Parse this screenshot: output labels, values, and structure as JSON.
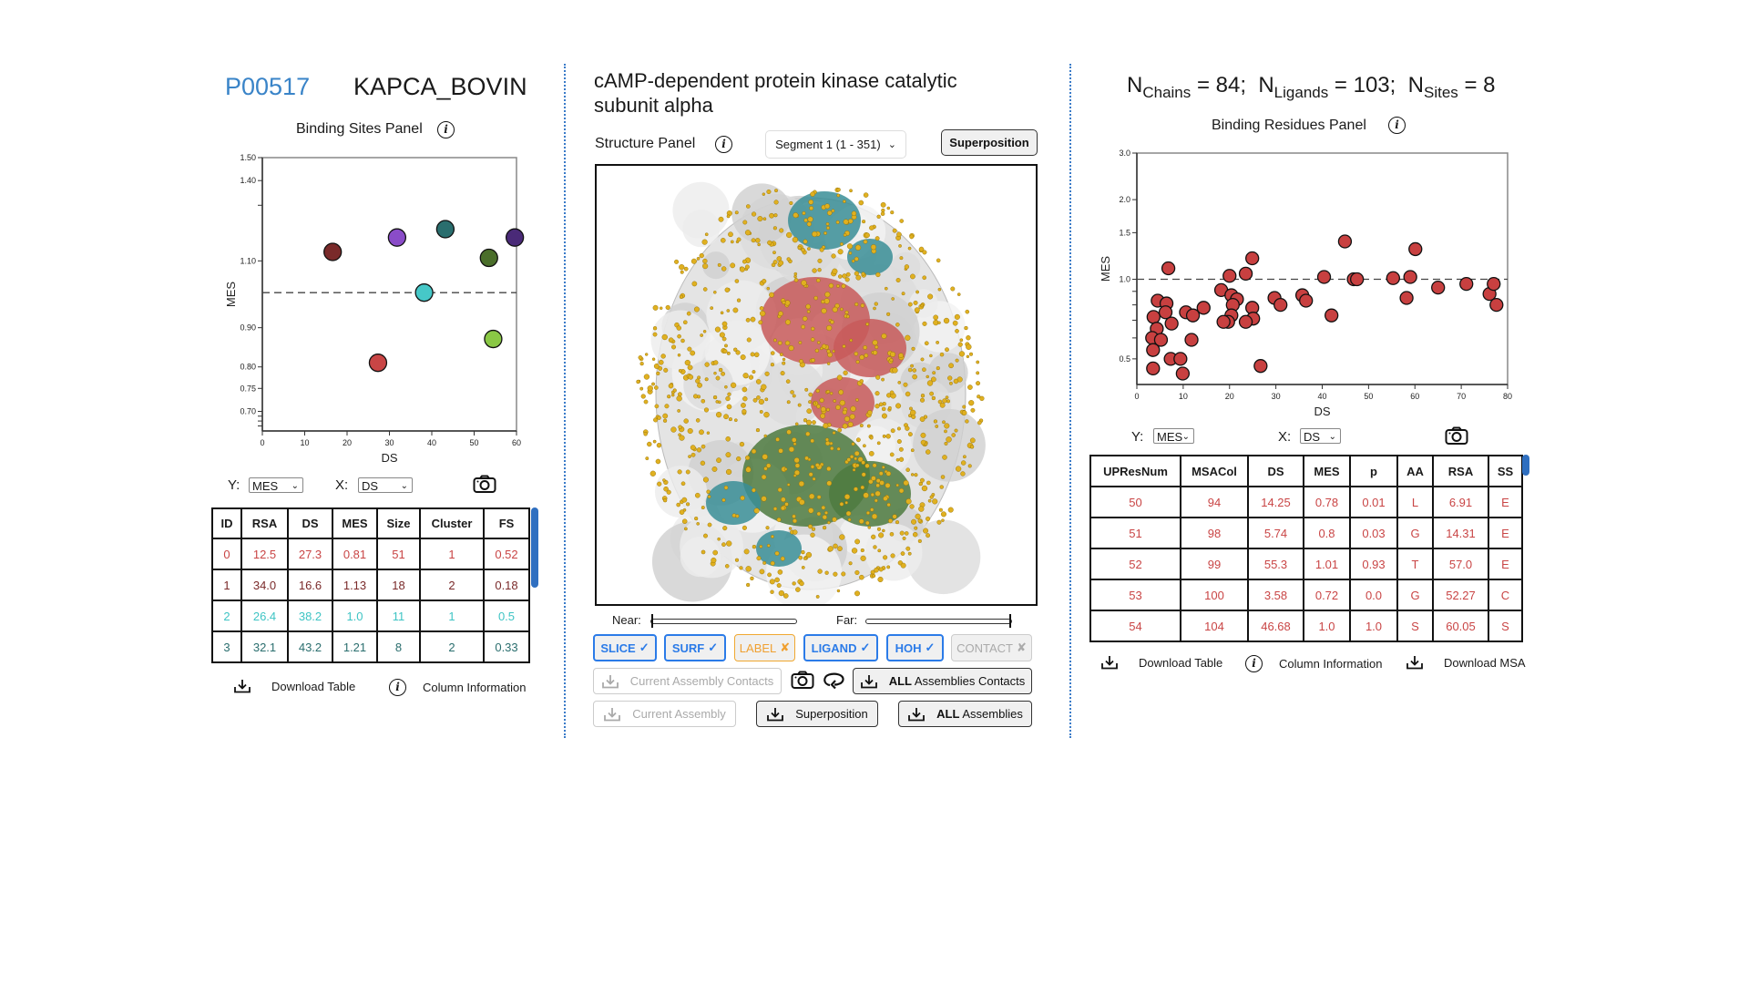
{
  "left": {
    "accession": "P00517",
    "entry_name": "KAPCA_BOVIN",
    "panel_title": "Binding Sites Panel",
    "y_label": "Y:",
    "y_select": "MES",
    "x_label": "X:",
    "x_select": "DS",
    "table": {
      "headers": [
        "ID",
        "RSA",
        "DS",
        "MES",
        "Size",
        "Cluster",
        "FS"
      ],
      "rows": [
        {
          "color": "#c94545",
          "cells": [
            "0",
            "12.5",
            "27.3",
            "0.81",
            "51",
            "1",
            "0.52"
          ]
        },
        {
          "color": "#7a2a2a",
          "cells": [
            "1",
            "34.0",
            "16.6",
            "1.13",
            "18",
            "2",
            "0.18"
          ]
        },
        {
          "color": "#3ec4c4",
          "cells": [
            "2",
            "26.4",
            "38.2",
            "1.0",
            "11",
            "1",
            "0.5"
          ]
        },
        {
          "color": "#2a6e6e",
          "cells": [
            "3",
            "32.1",
            "43.2",
            "1.21",
            "8",
            "2",
            "0.33"
          ]
        }
      ]
    },
    "download_table": "Download Table",
    "column_information": "Column Information"
  },
  "center": {
    "title": "cAMP-dependent protein kinase catalytic subunit alpha",
    "panel_title": "Structure Panel",
    "segment_select": "Segment 1 (1 - 351)",
    "superposition_top": "Superposition",
    "near_label": "Near:",
    "far_label": "Far:",
    "near_value": 0,
    "far_value": 1,
    "toggles": [
      {
        "label": "SLICE",
        "state": "on",
        "mark": "✓"
      },
      {
        "label": "SURF",
        "state": "on",
        "mark": "✓"
      },
      {
        "label": "LABEL",
        "state": "off-orange",
        "mark": "✘"
      },
      {
        "label": "LIGAND",
        "state": "on",
        "mark": "✓"
      },
      {
        "label": "HOH",
        "state": "on",
        "mark": "✓"
      },
      {
        "label": "CONTACT",
        "state": "off-grey",
        "mark": "✘"
      }
    ],
    "current_assembly_contacts": "Current Assembly Contacts",
    "all_bold": "ALL",
    "all_assemblies_contacts_rest": "Assemblies Contacts",
    "current_assembly": "Current Assembly",
    "superposition_download": "Superposition",
    "all_assemblies_rest": "Assemblies",
    "colors": {
      "surface": "#e4e4e4",
      "ligand": "#e0b020",
      "site_red": "#c85a5a",
      "site_teal": "#3a8e96",
      "site_green": "#4e7a40"
    }
  },
  "right": {
    "n_chains_label": "Chains",
    "n_chains": "= 84;",
    "n_ligands_label": "Ligands",
    "n_ligands": "= 103;",
    "n_sites_label": "Sites",
    "n_sites": "= 8",
    "n_symbol": "N",
    "panel_title": "Binding Residues Panel",
    "y_label": "Y:",
    "y_select": "MES",
    "x_label": "X:",
    "x_select": "DS",
    "table": {
      "headers": [
        "UPResNum",
        "MSACol",
        "DS",
        "MES",
        "p",
        "AA",
        "RSA",
        "SS"
      ],
      "rows": [
        {
          "color": "#c94545",
          "cells": [
            "50",
            "94",
            "14.25",
            "0.78",
            "0.01",
            "L",
            "6.91",
            "E"
          ]
        },
        {
          "color": "#c94545",
          "cells": [
            "51",
            "98",
            "5.74",
            "0.8",
            "0.03",
            "G",
            "14.31",
            "E"
          ]
        },
        {
          "color": "#c94545",
          "cells": [
            "52",
            "99",
            "55.3",
            "1.01",
            "0.93",
            "T",
            "57.0",
            "E"
          ]
        },
        {
          "color": "#c94545",
          "cells": [
            "53",
            "100",
            "3.58",
            "0.72",
            "0.0",
            "G",
            "52.27",
            "C"
          ]
        },
        {
          "color": "#c94545",
          "cells": [
            "54",
            "104",
            "46.68",
            "1.0",
            "1.0",
            "S",
            "60.05",
            "S"
          ]
        }
      ]
    },
    "download_table": "Download Table",
    "column_information": "Column Information",
    "download_msa": "Download MSA"
  },
  "chart_data": [
    {
      "type": "scatter",
      "xlabel": "DS",
      "ylabel": "MES",
      "xlim": [
        0,
        60
      ],
      "ylim": [
        0.66,
        1.5
      ],
      "yscale": "log",
      "xticks": [
        0,
        10,
        20,
        30,
        40,
        50,
        60
      ],
      "yticks": [
        {
          "v": 1.5,
          "label": "1.50"
        },
        {
          "v": 1.4,
          "label": "1.40"
        },
        {
          "v": 1.3,
          "label": ""
        },
        {
          "v": 1.1,
          "label": "1.10"
        },
        {
          "v": 0.9,
          "label": "0.90"
        },
        {
          "v": 0.8,
          "label": "0.80"
        },
        {
          "v": 0.75,
          "label": "0.75"
        },
        {
          "v": 0.7,
          "label": "0.70"
        },
        {
          "v": 0.69,
          "label": ""
        },
        {
          "v": 0.68,
          "label": ""
        },
        {
          "v": 0.67,
          "label": ""
        }
      ],
      "reference_line": 1.0,
      "points": [
        {
          "x": 27.3,
          "y": 0.81,
          "color": "#c94545"
        },
        {
          "x": 16.6,
          "y": 1.13,
          "color": "#7a2a2a"
        },
        {
          "x": 38.2,
          "y": 1.0,
          "color": "#46c8c8"
        },
        {
          "x": 43.2,
          "y": 1.21,
          "color": "#2a6e6e"
        },
        {
          "x": 31.8,
          "y": 1.18,
          "color": "#8a4cc8"
        },
        {
          "x": 59.6,
          "y": 1.18,
          "color": "#4a2a78"
        },
        {
          "x": 53.5,
          "y": 1.11,
          "color": "#4a6e2a"
        },
        {
          "x": 54.5,
          "y": 0.87,
          "color": "#8ac845"
        }
      ]
    },
    {
      "type": "scatter",
      "xlabel": "DS",
      "ylabel": "MES",
      "xlim": [
        0,
        80
      ],
      "ylim": [
        0.4,
        3.0
      ],
      "yscale": "log",
      "xticks": [
        0,
        10,
        20,
        30,
        40,
        50,
        60,
        70,
        80
      ],
      "yticks": [
        {
          "v": 3.0,
          "label": "3.0"
        },
        {
          "v": 2.0,
          "label": "2.0"
        },
        {
          "v": 1.5,
          "label": "1.5"
        },
        {
          "v": 1.0,
          "label": "1.0"
        },
        {
          "v": 0.9,
          "label": ""
        },
        {
          "v": 0.8,
          "label": ""
        },
        {
          "v": 0.7,
          "label": ""
        },
        {
          "v": 0.6,
          "label": ""
        },
        {
          "v": 0.5,
          "label": "0.5"
        }
      ],
      "reference_line": 1.0,
      "point_color": "#c84040",
      "points": [
        {
          "x": 6.8,
          "y": 1.1
        },
        {
          "x": 4.5,
          "y": 0.83
        },
        {
          "x": 6.4,
          "y": 0.81
        },
        {
          "x": 6.2,
          "y": 0.75
        },
        {
          "x": 3.6,
          "y": 0.72
        },
        {
          "x": 7.5,
          "y": 0.68
        },
        {
          "x": 4.3,
          "y": 0.65
        },
        {
          "x": 3.3,
          "y": 0.6
        },
        {
          "x": 5.2,
          "y": 0.59
        },
        {
          "x": 3.5,
          "y": 0.54
        },
        {
          "x": 7.3,
          "y": 0.5
        },
        {
          "x": 9.4,
          "y": 0.5
        },
        {
          "x": 3.5,
          "y": 0.46
        },
        {
          "x": 9.9,
          "y": 0.44
        },
        {
          "x": 10.6,
          "y": 0.75
        },
        {
          "x": 12.1,
          "y": 0.73
        },
        {
          "x": 11.8,
          "y": 0.59
        },
        {
          "x": 14.4,
          "y": 0.78
        },
        {
          "x": 18.2,
          "y": 0.91
        },
        {
          "x": 20.0,
          "y": 1.03
        },
        {
          "x": 20.4,
          "y": 0.87
        },
        {
          "x": 21.6,
          "y": 0.84
        },
        {
          "x": 20.7,
          "y": 0.8
        },
        {
          "x": 20.4,
          "y": 0.73
        },
        {
          "x": 19.7,
          "y": 0.69
        },
        {
          "x": 18.7,
          "y": 0.69
        },
        {
          "x": 23.5,
          "y": 1.05
        },
        {
          "x": 24.9,
          "y": 1.2
        },
        {
          "x": 24.9,
          "y": 0.78
        },
        {
          "x": 25.1,
          "y": 0.71
        },
        {
          "x": 23.5,
          "y": 0.69
        },
        {
          "x": 26.7,
          "y": 0.47
        },
        {
          "x": 29.7,
          "y": 0.85
        },
        {
          "x": 31.0,
          "y": 0.8
        },
        {
          "x": 35.7,
          "y": 0.87
        },
        {
          "x": 36.5,
          "y": 0.83
        },
        {
          "x": 40.4,
          "y": 1.02
        },
        {
          "x": 42.0,
          "y": 0.73
        },
        {
          "x": 44.9,
          "y": 1.39
        },
        {
          "x": 46.8,
          "y": 1.0
        },
        {
          "x": 47.5,
          "y": 1.0
        },
        {
          "x": 55.3,
          "y": 1.01
        },
        {
          "x": 59.0,
          "y": 1.02
        },
        {
          "x": 58.2,
          "y": 0.85
        },
        {
          "x": 60.1,
          "y": 1.3
        },
        {
          "x": 65.0,
          "y": 0.93
        },
        {
          "x": 71.1,
          "y": 0.96
        },
        {
          "x": 76.1,
          "y": 0.88
        },
        {
          "x": 77.0,
          "y": 0.96
        },
        {
          "x": 77.6,
          "y": 0.8
        }
      ]
    }
  ]
}
